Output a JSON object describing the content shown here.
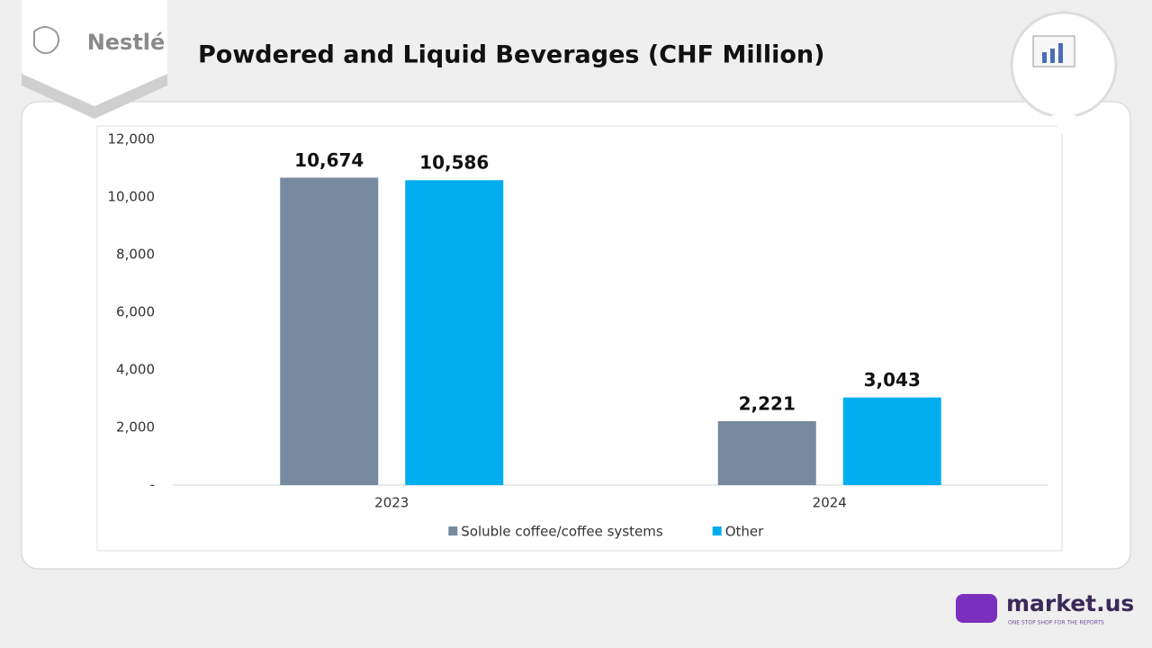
{
  "brand": {
    "logo": "Nestlé",
    "site": "market.us",
    "tagline": "ONE STOP SHOP FOR THE REPORTS"
  },
  "chart_data": {
    "type": "bar",
    "title": "Powdered and Liquid Beverages (CHF Million)",
    "categories": [
      "2023",
      "2024"
    ],
    "series": [
      {
        "name": "Soluble coffee/coffee systems",
        "color": "#778a9f",
        "values": [
          10674,
          2221
        ],
        "value_labels": [
          "10,674",
          "2,221"
        ]
      },
      {
        "name": "Other",
        "color": "#00aeef",
        "values": [
          10586,
          3043
        ],
        "value_labels": [
          "10,586",
          "3,043"
        ]
      }
    ],
    "ylim": [
      0,
      12000
    ],
    "yticks": [
      {
        "value": 0,
        "label": "-"
      },
      {
        "value": 2000,
        "label": "2,000"
      },
      {
        "value": 4000,
        "label": "4,000"
      },
      {
        "value": 6000,
        "label": "6,000"
      },
      {
        "value": 8000,
        "label": "8,000"
      },
      {
        "value": 10000,
        "label": "10,000"
      },
      {
        "value": 12000,
        "label": "12,000"
      }
    ],
    "grid": false,
    "legend": "bottom"
  }
}
